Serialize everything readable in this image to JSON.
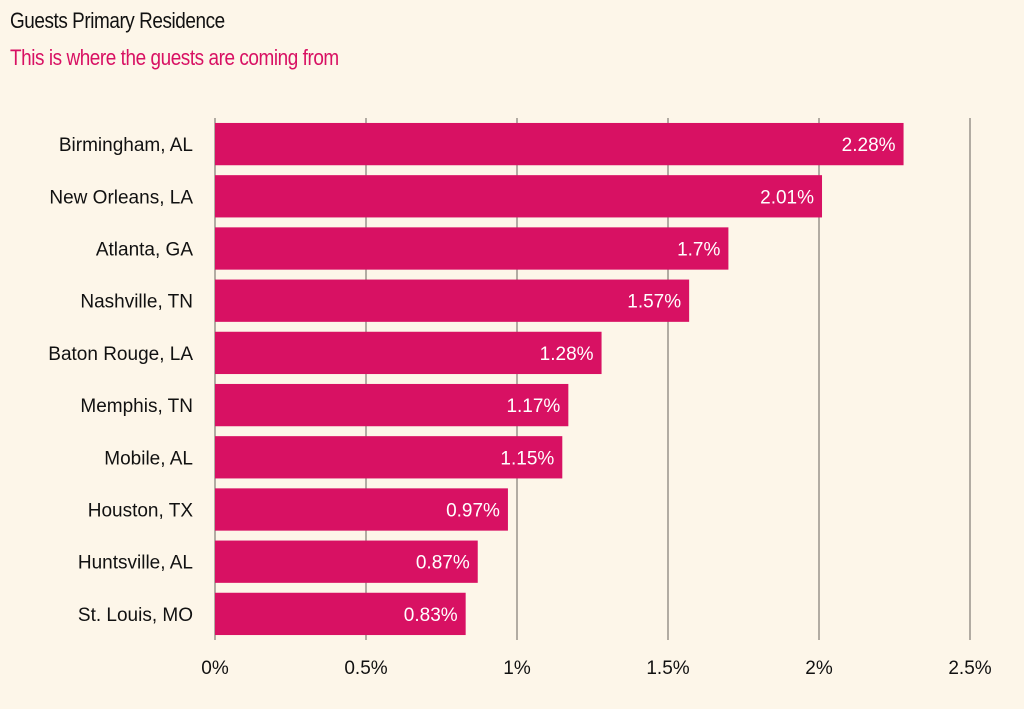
{
  "title": "Guests Primary Residence",
  "subtitle": "This is where the guests are coming from",
  "colors": {
    "background": "#fdf6e9",
    "bar": "#d81163",
    "subtitle": "#d81163",
    "grid": "#9a948c",
    "text": "#111111",
    "value_text": "#ffffff"
  },
  "chart_data": {
    "type": "bar",
    "orientation": "horizontal",
    "categories": [
      "Birmingham, AL",
      "New Orleans, LA",
      "Atlanta, GA",
      "Nashville, TN",
      "Baton Rouge, LA",
      "Memphis, TN",
      "Mobile, AL",
      "Houston, TX",
      "Huntsville, AL",
      "St. Louis, MO"
    ],
    "values": [
      2.28,
      2.01,
      1.7,
      1.57,
      1.28,
      1.17,
      1.15,
      0.97,
      0.87,
      0.83
    ],
    "value_labels": [
      "2.28%",
      "2.01%",
      "1.7%",
      "1.57%",
      "1.28%",
      "1.17%",
      "1.15%",
      "0.97%",
      "0.87%",
      "0.83%"
    ],
    "x_ticks": [
      0,
      0.5,
      1,
      1.5,
      2,
      2.5
    ],
    "x_tick_labels": [
      "0%",
      "0.5%",
      "1%",
      "1.5%",
      "2%",
      "2.5%"
    ],
    "xlim": [
      0,
      2.5
    ],
    "grid": true,
    "legend": "none"
  }
}
